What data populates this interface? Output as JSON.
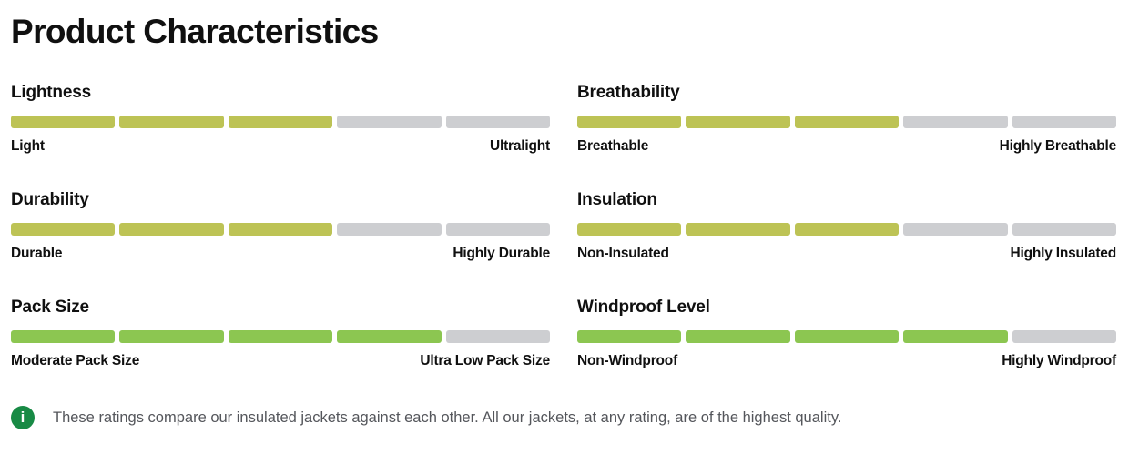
{
  "section": {
    "title": "Product Characteristics",
    "footnote": "These ratings compare our insulated jackets against each other. All our jackets, at any rating, are of the highest quality.",
    "info_icon_glyph": "i"
  },
  "colors": {
    "rating_olive_fill": "#bdc355",
    "rating_green_fill": "#8cc651",
    "empty_segment": "#cdced1",
    "info_icon_bg": "#188a45",
    "footnote_text": "#54565b",
    "heading_text": "#101010"
  },
  "ratings": [
    {
      "id": "lightness",
      "title": "Lightness",
      "min_label": "Light",
      "max_label": "Ultralight",
      "value": 3,
      "max": 5,
      "fill_color": "#bdc355"
    },
    {
      "id": "breathability",
      "title": "Breathability",
      "min_label": "Breathable",
      "max_label": "Highly Breathable",
      "value": 3,
      "max": 5,
      "fill_color": "#bdc355"
    },
    {
      "id": "durability",
      "title": "Durability",
      "min_label": "Durable",
      "max_label": "Highly Durable",
      "value": 3,
      "max": 5,
      "fill_color": "#bdc355"
    },
    {
      "id": "insulation",
      "title": "Insulation",
      "min_label": "Non-Insulated",
      "max_label": "Highly Insulated",
      "value": 3,
      "max": 5,
      "fill_color": "#bdc355"
    },
    {
      "id": "pack-size",
      "title": "Pack Size",
      "min_label": "Moderate Pack Size",
      "max_label": "Ultra Low Pack Size",
      "value": 4,
      "max": 5,
      "fill_color": "#8cc651"
    },
    {
      "id": "windproof-level",
      "title": "Windproof Level",
      "min_label": "Non-Windproof",
      "max_label": "Highly Windproof",
      "value": 4,
      "max": 5,
      "fill_color": "#8cc651"
    }
  ]
}
